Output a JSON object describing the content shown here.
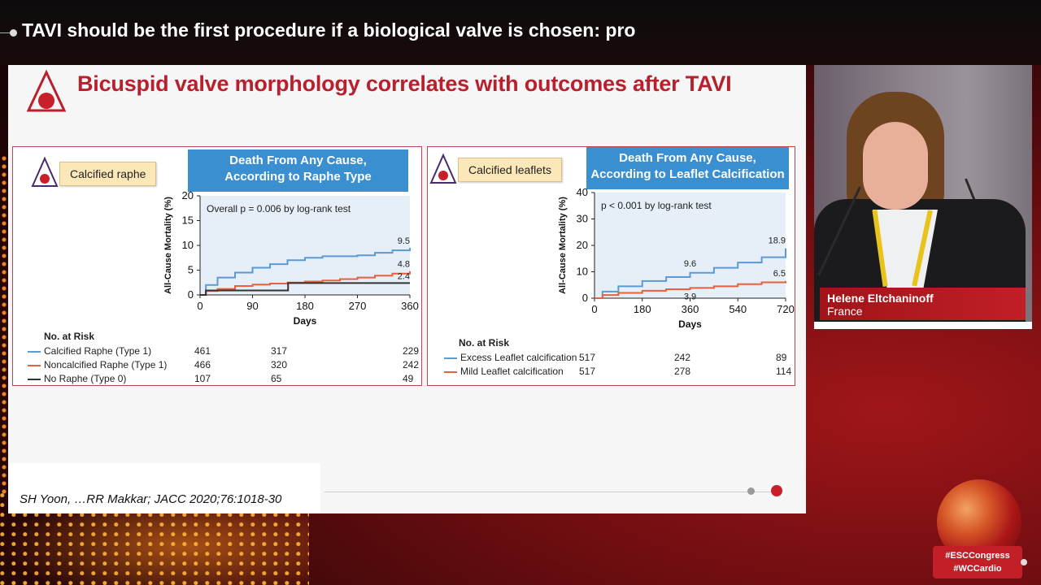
{
  "session_title": "TAVI should be the first procedure if a biological valve is chosen: pro",
  "slide": {
    "headline": "Bicuspid valve morphology correlates with outcomes after TAVI",
    "left_panel": {
      "tag": "Calcified raphe",
      "banner_line1": "Death From Any Cause,",
      "banner_line2": "According to Raphe Type",
      "annotation": "Overall p = 0.006 by log-rank test",
      "ylabel": "All-Cause Mortality (%)",
      "xlabel": "Days",
      "risk_header": "No. at Risk",
      "risk_rows": [
        {
          "label": "Calcified Raphe (Type 1)",
          "c1": "461",
          "c2": "317",
          "c3": "229",
          "color": "#5b9bd5"
        },
        {
          "label": "Noncalcified Raphe (Type 1)",
          "c1": "466",
          "c2": "320",
          "c3": "242",
          "color": "#e8603c"
        },
        {
          "label": "No Raphe (Type 0)",
          "c1": "107",
          "c2": "65",
          "c3": "49",
          "color": "#333333"
        }
      ]
    },
    "right_panel": {
      "tag": "Calcified leaflets",
      "banner_line1": "Death From Any Cause,",
      "banner_line2": "According to Leaflet Calcification",
      "annotation": "p < 0.001 by log-rank test",
      "ylabel": "All-Cause Mortality (%)",
      "xlabel": "Days",
      "risk_header": "No. at Risk",
      "risk_rows": [
        {
          "label": "Excess Leaflet calcification",
          "c1": "517",
          "c2": "242",
          "c3": "89",
          "color": "#5b9bd5"
        },
        {
          "label": "Mild Leaflet calcification",
          "c1": "517",
          "c2": "278",
          "c3": "114",
          "color": "#e8603c"
        }
      ]
    },
    "citation": "SH Yoon, …RR Makkar; JACC 2020;76:1018-30"
  },
  "chart_data": [
    {
      "type": "line",
      "title": "Death From Any Cause, According to Raphe Type",
      "xlabel": "Days",
      "ylabel": "All-Cause Mortality (%)",
      "xlim": [
        0,
        360
      ],
      "ylim": [
        0,
        20
      ],
      "xticks": [
        0,
        90,
        180,
        270,
        360
      ],
      "yticks": [
        0,
        5,
        10,
        15,
        20
      ],
      "series": [
        {
          "name": "Calcified Raphe (Type 1)",
          "color": "#5b9bd5",
          "x": [
            0,
            10,
            30,
            60,
            90,
            120,
            150,
            180,
            210,
            240,
            270,
            300,
            330,
            360
          ],
          "y": [
            0,
            2.0,
            3.5,
            4.5,
            5.5,
            6.2,
            7.0,
            7.5,
            7.8,
            7.8,
            8.0,
            8.5,
            9.0,
            9.5
          ],
          "end_label": "9.5"
        },
        {
          "name": "Noncalcified Raphe (Type 1)",
          "color": "#e8603c",
          "x": [
            0,
            10,
            30,
            60,
            90,
            120,
            150,
            180,
            210,
            240,
            270,
            300,
            330,
            360
          ],
          "y": [
            0,
            0.8,
            1.2,
            1.8,
            2.1,
            2.3,
            2.5,
            2.7,
            2.9,
            3.2,
            3.5,
            3.9,
            4.3,
            4.8
          ],
          "end_label": "4.8"
        },
        {
          "name": "No Raphe (Type 0)",
          "color": "#333333",
          "x": [
            0,
            10,
            30,
            60,
            90,
            120,
            150,
            151,
            180,
            270,
            360
          ],
          "y": [
            0,
            0.9,
            0.9,
            0.9,
            0.9,
            0.9,
            0.9,
            2.4,
            2.4,
            2.4,
            2.4
          ],
          "end_label": "2.4"
        }
      ]
    },
    {
      "type": "line",
      "title": "Death From Any Cause, According to Leaflet Calcification",
      "xlabel": "Days",
      "ylabel": "All-Cause Mortality (%)",
      "xlim": [
        0,
        720
      ],
      "ylim": [
        0,
        40
      ],
      "xticks": [
        0,
        180,
        360,
        540,
        720
      ],
      "yticks": [
        0,
        10,
        20,
        30,
        40
      ],
      "series": [
        {
          "name": "Excess Leaflet calcification",
          "color": "#5b9bd5",
          "x": [
            0,
            30,
            90,
            180,
            270,
            360,
            450,
            540,
            630,
            720
          ],
          "y": [
            0,
            2.5,
            4.5,
            6.5,
            8.0,
            9.6,
            11.5,
            13.5,
            15.5,
            18.9
          ],
          "end_label": "18.9",
          "mid_label": "9.6"
        },
        {
          "name": "Mild Leaflet calcification",
          "color": "#e8603c",
          "x": [
            0,
            30,
            90,
            180,
            270,
            360,
            450,
            540,
            630,
            720
          ],
          "y": [
            0,
            1.2,
            2.0,
            2.8,
            3.4,
            3.9,
            4.5,
            5.3,
            6.0,
            6.5
          ],
          "end_label": "6.5",
          "mid_label": "3.9"
        }
      ]
    }
  ],
  "speaker": {
    "name": "Helene Eltchaninoff",
    "country": "France"
  },
  "hashtags": [
    "#ESCCongress",
    "#WCCardio"
  ]
}
